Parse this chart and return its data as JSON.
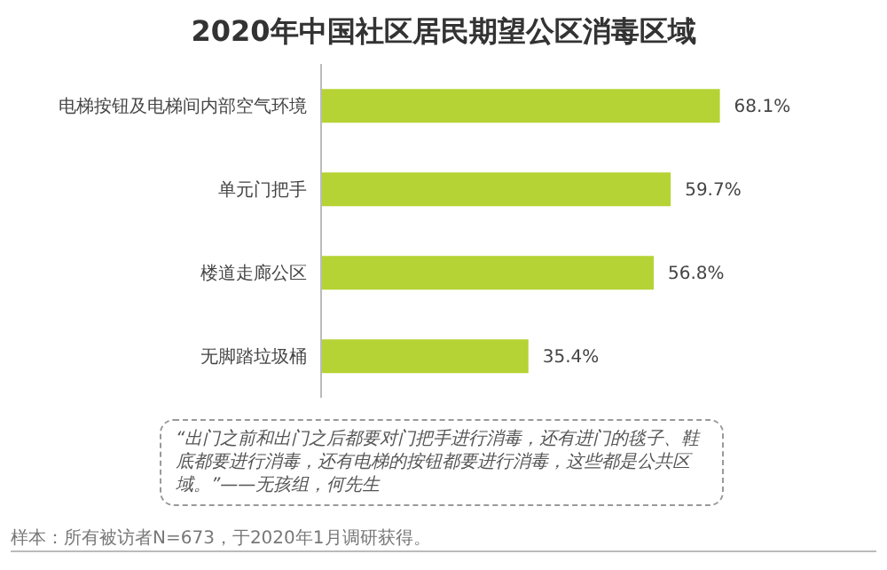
{
  "chart_data": {
    "type": "bar",
    "orientation": "horizontal",
    "title": "2020年中国社区居民期望公区消毒区域",
    "categories": [
      "电梯按钮及电梯间内部空气环境",
      "单元门把手",
      "楼道走廊公区",
      "无脚踏垃圾桶"
    ],
    "values": [
      68.1,
      59.7,
      56.8,
      35.4
    ],
    "value_labels": [
      "68.1%",
      "59.7%",
      "56.8%",
      "35.4%"
    ],
    "color": "#b5d334",
    "annotations": [
      "“出门之前和出门之后都要对门把手进行消毒，还有进门的毯子、鞋底都要进行消毒，还有电梯的按钮都要进行消毒，这些都是公共区域。”——无孩组，何先生",
      "样本：所有被访者N=673，于2020年1月调研获得。"
    ]
  }
}
